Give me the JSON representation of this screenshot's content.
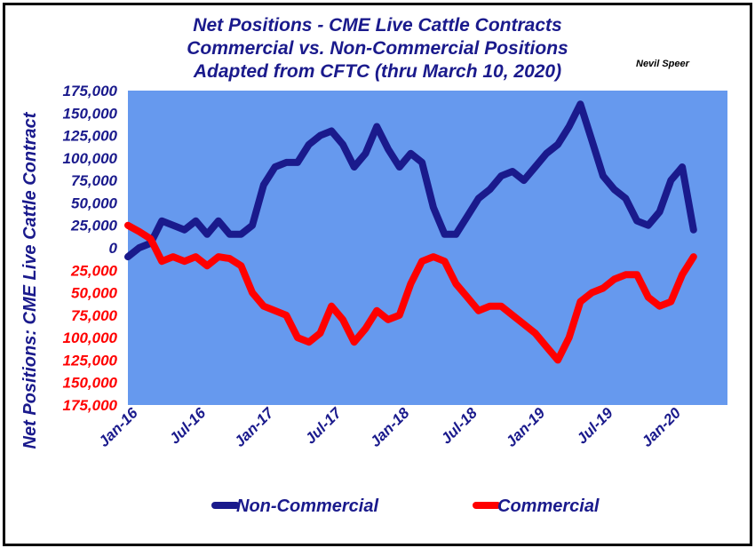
{
  "chart_data": {
    "type": "line",
    "title_lines": [
      "Net Positions - CME Live Cattle Contracts",
      "Commercial vs. Non-Commercial Positions",
      "Adapted from CFTC (thru March 10, 2020)"
    ],
    "credit": "Nevil Speer",
    "ylabel": "Net Positions:  CME Live Cattle Contract",
    "xlabel": "",
    "ylim": [
      -175000,
      175000
    ],
    "y_ticks": [
      {
        "value": 175000,
        "label": "175,000"
      },
      {
        "value": 150000,
        "label": "150,000"
      },
      {
        "value": 125000,
        "label": "125,000"
      },
      {
        "value": 100000,
        "label": "100,000"
      },
      {
        "value": 75000,
        "label": "75,000"
      },
      {
        "value": 50000,
        "label": "50,000"
      },
      {
        "value": 25000,
        "label": "25,000"
      },
      {
        "value": 0,
        "label": "0"
      },
      {
        "value": -25000,
        "label": "25,000"
      },
      {
        "value": -50000,
        "label": "50,000"
      },
      {
        "value": -75000,
        "label": "75,000"
      },
      {
        "value": -100000,
        "label": "100,000"
      },
      {
        "value": -125000,
        "label": "125,000"
      },
      {
        "value": -150000,
        "label": "150,000"
      },
      {
        "value": -175000,
        "label": "175,000"
      }
    ],
    "x_ticks": [
      "Jan-16",
      "Jul-16",
      "Jan-17",
      "Jul-17",
      "Jan-18",
      "Jul-18",
      "Jan-19",
      "Jul-19",
      "Jan-20"
    ],
    "xlim": [
      "2016-01",
      "2020-06"
    ],
    "grid": false,
    "legend_position": "bottom",
    "colors": {
      "plot_background": "#6699ee",
      "non_commercial": "#1a1a8c",
      "commercial": "#ff0000",
      "axis_text": "#1a1a8c",
      "negative_tick_text": "#ff0000"
    },
    "series": [
      {
        "name": "Non-Commercial",
        "x": [
          "2016-01",
          "2016-02",
          "2016-03",
          "2016-04",
          "2016-05",
          "2016-06",
          "2016-07",
          "2016-08",
          "2016-09",
          "2016-10",
          "2016-11",
          "2016-12",
          "2017-01",
          "2017-02",
          "2017-03",
          "2017-04",
          "2017-05",
          "2017-06",
          "2017-07",
          "2017-08",
          "2017-09",
          "2017-10",
          "2017-11",
          "2017-12",
          "2018-01",
          "2018-02",
          "2018-03",
          "2018-04",
          "2018-05",
          "2018-06",
          "2018-07",
          "2018-08",
          "2018-09",
          "2018-10",
          "2018-11",
          "2018-12",
          "2019-01",
          "2019-02",
          "2019-03",
          "2019-04",
          "2019-05",
          "2019-06",
          "2019-07",
          "2019-08",
          "2019-09",
          "2019-10",
          "2019-11",
          "2019-12",
          "2020-01",
          "2020-02",
          "2020-03"
        ],
        "values": [
          -10000,
          0,
          5000,
          30000,
          25000,
          20000,
          30000,
          15000,
          30000,
          15000,
          15000,
          25000,
          70000,
          90000,
          95000,
          95000,
          115000,
          125000,
          130000,
          115000,
          90000,
          105000,
          135000,
          110000,
          90000,
          105000,
          95000,
          45000,
          15000,
          15000,
          35000,
          55000,
          65000,
          80000,
          85000,
          75000,
          90000,
          105000,
          115000,
          135000,
          160000,
          120000,
          80000,
          65000,
          55000,
          30000,
          25000,
          40000,
          75000,
          90000,
          20000
        ]
      },
      {
        "name": "Commercial",
        "x": [
          "2016-01",
          "2016-02",
          "2016-03",
          "2016-04",
          "2016-05",
          "2016-06",
          "2016-07",
          "2016-08",
          "2016-09",
          "2016-10",
          "2016-11",
          "2016-12",
          "2017-01",
          "2017-02",
          "2017-03",
          "2017-04",
          "2017-05",
          "2017-06",
          "2017-07",
          "2017-08",
          "2017-09",
          "2017-10",
          "2017-11",
          "2017-12",
          "2018-01",
          "2018-02",
          "2018-03",
          "2018-04",
          "2018-05",
          "2018-06",
          "2018-07",
          "2018-08",
          "2018-09",
          "2018-10",
          "2018-11",
          "2018-12",
          "2019-01",
          "2019-02",
          "2019-03",
          "2019-04",
          "2019-05",
          "2019-06",
          "2019-07",
          "2019-08",
          "2019-09",
          "2019-10",
          "2019-11",
          "2019-12",
          "2020-01",
          "2020-02",
          "2020-03"
        ],
        "values": [
          25000,
          18000,
          10000,
          -15000,
          -10000,
          -15000,
          -10000,
          -20000,
          -10000,
          -12000,
          -20000,
          -50000,
          -65000,
          -70000,
          -75000,
          -100000,
          -105000,
          -95000,
          -65000,
          -80000,
          -105000,
          -90000,
          -70000,
          -80000,
          -75000,
          -40000,
          -15000,
          -10000,
          -15000,
          -40000,
          -55000,
          -70000,
          -65000,
          -65000,
          -75000,
          -85000,
          -95000,
          -110000,
          -125000,
          -100000,
          -60000,
          -50000,
          -45000,
          -35000,
          -30000,
          -30000,
          -55000,
          -65000,
          -60000,
          -30000,
          -10000
        ]
      }
    ]
  }
}
